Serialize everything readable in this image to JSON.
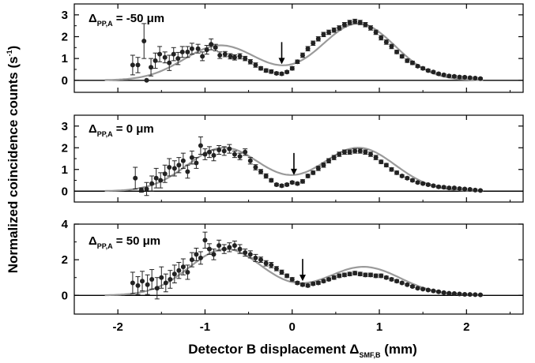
{
  "chart_data": {
    "type": "scatter",
    "xlabel": {
      "main": "Detector B displacement Δ",
      "sub": "SMF,B",
      "unit": " (mm)"
    },
    "ylabel": {
      "main": "Normalized coincidence counts (s",
      "sup": "-1",
      "end": ")"
    },
    "xlim": [
      -2.5,
      2.65
    ],
    "x_ticks": [
      "-2",
      "-1",
      "0",
      "1",
      "2"
    ],
    "panels": [
      {
        "label": {
          "delta": "Δ",
          "sub": "PP,A",
          "text": " = -50 μm"
        },
        "ylim": [
          -0.55,
          3.5
        ],
        "y_ticks": [
          "0",
          "1",
          "2",
          "3"
        ],
        "arrow_x": -0.12,
        "colors": {
          "points": "#222222",
          "fit": "#9a9a9a"
        },
        "points": [
          [
            -1.83,
            0.7,
            0.45
          ],
          [
            -1.77,
            0.7,
            0.35
          ],
          [
            -1.7,
            1.8,
            0.8
          ],
          [
            -1.67,
            0.0,
            0.0
          ],
          [
            -1.62,
            0.6,
            0.4
          ],
          [
            -1.57,
            0.9,
            0.35
          ],
          [
            -1.52,
            1.2,
            0.35
          ],
          [
            -1.46,
            1.05,
            0.25
          ],
          [
            -1.41,
            0.8,
            0.35
          ],
          [
            -1.36,
            1.2,
            0.3
          ],
          [
            -1.31,
            1.0,
            0.28
          ],
          [
            -1.26,
            1.3,
            0.25
          ],
          [
            -1.2,
            1.3,
            0.25
          ],
          [
            -1.15,
            1.45,
            0.25
          ],
          [
            -1.08,
            1.45,
            0.2
          ],
          [
            -1.03,
            1.1,
            0.2
          ],
          [
            -0.98,
            1.4,
            0.2
          ],
          [
            -0.93,
            1.65,
            0.25
          ],
          [
            -0.88,
            1.5,
            0.15
          ],
          [
            -0.83,
            1.15,
            0.15
          ],
          [
            -0.77,
            1.2,
            0.12
          ],
          [
            -0.71,
            1.1,
            0.12
          ],
          [
            -0.66,
            1.05,
            0.12
          ],
          [
            -0.6,
            1.1,
            0.12
          ],
          [
            -0.54,
            1.0,
            0.1
          ],
          [
            -0.48,
            0.85,
            0.1
          ],
          [
            -0.42,
            0.7,
            0.1
          ],
          [
            -0.36,
            0.55,
            0.08
          ],
          [
            -0.3,
            0.45,
            0.08
          ],
          [
            -0.24,
            0.4,
            0.08
          ],
          [
            -0.18,
            0.32,
            0.06
          ],
          [
            -0.12,
            0.3,
            0.06
          ],
          [
            -0.06,
            0.38,
            0.06
          ],
          [
            0.0,
            0.55,
            0.08
          ],
          [
            0.06,
            0.85,
            0.08
          ],
          [
            0.12,
            1.15,
            0.1
          ],
          [
            0.18,
            1.45,
            0.1
          ],
          [
            0.24,
            1.7,
            0.1
          ],
          [
            0.3,
            1.9,
            0.1
          ],
          [
            0.36,
            2.1,
            0.1
          ],
          [
            0.42,
            2.2,
            0.1
          ],
          [
            0.48,
            2.3,
            0.1
          ],
          [
            0.54,
            2.4,
            0.1
          ],
          [
            0.6,
            2.55,
            0.1
          ],
          [
            0.66,
            2.65,
            0.1
          ],
          [
            0.72,
            2.7,
            0.1
          ],
          [
            0.78,
            2.65,
            0.1
          ],
          [
            0.84,
            2.55,
            0.1
          ],
          [
            0.9,
            2.4,
            0.1
          ],
          [
            0.96,
            2.2,
            0.1
          ],
          [
            1.02,
            1.95,
            0.1
          ],
          [
            1.08,
            1.75,
            0.1
          ],
          [
            1.14,
            1.55,
            0.1
          ],
          [
            1.2,
            1.3,
            0.08
          ],
          [
            1.26,
            1.1,
            0.08
          ],
          [
            1.32,
            0.9,
            0.08
          ],
          [
            1.38,
            0.8,
            0.08
          ],
          [
            1.44,
            0.65,
            0.06
          ],
          [
            1.5,
            0.55,
            0.06
          ],
          [
            1.56,
            0.45,
            0.06
          ],
          [
            1.62,
            0.38,
            0.05
          ],
          [
            1.68,
            0.3,
            0.05
          ],
          [
            1.74,
            0.25,
            0.05
          ],
          [
            1.8,
            0.2,
            0.05
          ],
          [
            1.86,
            0.18,
            0.05
          ],
          [
            1.92,
            0.15,
            0.05
          ],
          [
            1.98,
            0.14,
            0.04
          ],
          [
            2.04,
            0.12,
            0.04
          ],
          [
            2.1,
            0.1,
            0.04
          ],
          [
            2.16,
            0.08,
            0.04
          ]
        ],
        "fit": {
          "left": {
            "center": -0.82,
            "amplitude": 1.6,
            "width": 0.42
          },
          "right": {
            "center": 0.76,
            "amplitude": 2.6,
            "width": 0.42
          }
        }
      },
      {
        "label": {
          "delta": "Δ",
          "sub": "PP,A",
          "text": " = 0 μm"
        },
        "ylim": [
          -0.5,
          3.5
        ],
        "y_ticks": [
          "0",
          "1",
          "2",
          "3"
        ],
        "arrow_x": 0.02,
        "colors": {
          "points": "#222222",
          "fit": "#9a9a9a"
        },
        "points": [
          [
            -1.8,
            0.6,
            0.5
          ],
          [
            -1.73,
            0.05,
            0.1
          ],
          [
            -1.67,
            0.1,
            0.3
          ],
          [
            -1.61,
            0.35,
            0.35
          ],
          [
            -1.56,
            0.6,
            0.45
          ],
          [
            -1.51,
            0.5,
            0.35
          ],
          [
            -1.46,
            0.8,
            0.4
          ],
          [
            -1.41,
            1.1,
            0.4
          ],
          [
            -1.35,
            1.05,
            0.35
          ],
          [
            -1.3,
            1.2,
            0.35
          ],
          [
            -1.25,
            1.4,
            0.35
          ],
          [
            -1.2,
            0.9,
            0.3
          ],
          [
            -1.15,
            1.55,
            0.3
          ],
          [
            -1.1,
            1.3,
            0.25
          ],
          [
            -1.05,
            2.1,
            0.4
          ],
          [
            -1.0,
            1.7,
            0.25
          ],
          [
            -0.95,
            1.8,
            0.25
          ],
          [
            -0.9,
            1.65,
            0.25
          ],
          [
            -0.84,
            1.9,
            0.2
          ],
          [
            -0.78,
            1.85,
            0.2
          ],
          [
            -0.72,
            1.95,
            0.2
          ],
          [
            -0.66,
            1.7,
            0.15
          ],
          [
            -0.6,
            1.6,
            0.15
          ],
          [
            -0.54,
            1.8,
            0.15
          ],
          [
            -0.48,
            1.4,
            0.15
          ],
          [
            -0.42,
            1.1,
            0.12
          ],
          [
            -0.36,
            0.9,
            0.1
          ],
          [
            -0.3,
            0.7,
            0.1
          ],
          [
            -0.24,
            0.5,
            0.08
          ],
          [
            -0.18,
            0.3,
            0.06
          ],
          [
            -0.12,
            0.25,
            0.06
          ],
          [
            -0.06,
            0.3,
            0.06
          ],
          [
            0.0,
            0.4,
            0.06
          ],
          [
            0.06,
            0.35,
            0.06
          ],
          [
            0.12,
            0.45,
            0.08
          ],
          [
            0.18,
            0.7,
            0.08
          ],
          [
            0.24,
            0.85,
            0.08
          ],
          [
            0.3,
            1.05,
            0.1
          ],
          [
            0.36,
            1.2,
            0.1
          ],
          [
            0.42,
            1.4,
            0.1
          ],
          [
            0.48,
            1.55,
            0.1
          ],
          [
            0.54,
            1.7,
            0.1
          ],
          [
            0.6,
            1.8,
            0.1
          ],
          [
            0.66,
            1.8,
            0.1
          ],
          [
            0.72,
            1.85,
            0.1
          ],
          [
            0.78,
            1.85,
            0.1
          ],
          [
            0.84,
            1.8,
            0.1
          ],
          [
            0.9,
            1.7,
            0.1
          ],
          [
            0.96,
            1.55,
            0.1
          ],
          [
            1.02,
            1.35,
            0.08
          ],
          [
            1.08,
            1.2,
            0.08
          ],
          [
            1.14,
            1.0,
            0.08
          ],
          [
            1.2,
            0.85,
            0.08
          ],
          [
            1.26,
            0.7,
            0.06
          ],
          [
            1.32,
            0.6,
            0.06
          ],
          [
            1.38,
            0.5,
            0.06
          ],
          [
            1.44,
            0.4,
            0.05
          ],
          [
            1.5,
            0.35,
            0.05
          ],
          [
            1.56,
            0.3,
            0.05
          ],
          [
            1.62,
            0.25,
            0.05
          ],
          [
            1.68,
            0.2,
            0.05
          ],
          [
            1.74,
            0.18,
            0.05
          ],
          [
            1.8,
            0.15,
            0.05
          ],
          [
            1.86,
            0.15,
            0.04
          ],
          [
            1.92,
            0.12,
            0.04
          ],
          [
            1.98,
            0.1,
            0.04
          ],
          [
            2.04,
            0.08,
            0.04
          ],
          [
            2.1,
            0.05,
            0.04
          ],
          [
            2.16,
            0.03,
            0.03
          ]
        ],
        "fit": {
          "left": {
            "center": -0.78,
            "amplitude": 2.0,
            "width": 0.42
          },
          "right": {
            "center": 0.76,
            "amplitude": 2.0,
            "width": 0.42
          }
        }
      },
      {
        "label": {
          "delta": "Δ",
          "sub": "PP,A",
          "text": " = 50 μm"
        },
        "ylim": [
          -1.05,
          4.0
        ],
        "y_ticks": [
          "0",
          "2",
          "4"
        ],
        "arrow_x": 0.12,
        "colors": {
          "points": "#222222",
          "fit": "#9a9a9a"
        },
        "points": [
          [
            -1.83,
            0.7,
            0.6
          ],
          [
            -1.77,
            0.55,
            0.5
          ],
          [
            -1.72,
            0.8,
            0.55
          ],
          [
            -1.66,
            0.6,
            0.55
          ],
          [
            -1.61,
            0.9,
            0.55
          ],
          [
            -1.55,
            0.4,
            0.6
          ],
          [
            -1.5,
            1.0,
            0.6
          ],
          [
            -1.45,
            0.7,
            0.5
          ],
          [
            -1.4,
            0.9,
            0.5
          ],
          [
            -1.35,
            1.2,
            0.5
          ],
          [
            -1.3,
            1.4,
            0.45
          ],
          [
            -1.25,
            1.6,
            0.45
          ],
          [
            -1.2,
            1.3,
            0.4
          ],
          [
            -1.15,
            2.0,
            0.4
          ],
          [
            -1.1,
            2.3,
            0.35
          ],
          [
            -1.05,
            2.1,
            0.35
          ],
          [
            -1.0,
            3.1,
            0.45
          ],
          [
            -0.95,
            2.6,
            0.3
          ],
          [
            -0.9,
            2.3,
            0.3
          ],
          [
            -0.84,
            2.8,
            0.3
          ],
          [
            -0.78,
            2.6,
            0.25
          ],
          [
            -0.72,
            2.7,
            0.25
          ],
          [
            -0.66,
            2.8,
            0.25
          ],
          [
            -0.6,
            2.6,
            0.25
          ],
          [
            -0.54,
            2.4,
            0.2
          ],
          [
            -0.48,
            2.3,
            0.2
          ],
          [
            -0.42,
            2.1,
            0.2
          ],
          [
            -0.36,
            2.0,
            0.15
          ],
          [
            -0.3,
            1.8,
            0.15
          ],
          [
            -0.24,
            1.7,
            0.15
          ],
          [
            -0.18,
            1.5,
            0.12
          ],
          [
            -0.12,
            1.3,
            0.12
          ],
          [
            -0.06,
            1.1,
            0.1
          ],
          [
            0.0,
            0.9,
            0.1
          ],
          [
            0.06,
            0.7,
            0.08
          ],
          [
            0.12,
            0.6,
            0.08
          ],
          [
            0.18,
            0.55,
            0.08
          ],
          [
            0.24,
            0.65,
            0.08
          ],
          [
            0.3,
            0.7,
            0.08
          ],
          [
            0.36,
            0.8,
            0.08
          ],
          [
            0.42,
            0.9,
            0.08
          ],
          [
            0.48,
            1.0,
            0.1
          ],
          [
            0.54,
            1.1,
            0.1
          ],
          [
            0.6,
            1.15,
            0.1
          ],
          [
            0.66,
            1.2,
            0.1
          ],
          [
            0.72,
            1.25,
            0.1
          ],
          [
            0.78,
            1.2,
            0.1
          ],
          [
            0.84,
            1.15,
            0.1
          ],
          [
            0.9,
            1.15,
            0.1
          ],
          [
            0.96,
            1.1,
            0.1
          ],
          [
            1.02,
            1.1,
            0.1
          ],
          [
            1.08,
            1.0,
            0.08
          ],
          [
            1.14,
            0.9,
            0.08
          ],
          [
            1.2,
            0.8,
            0.08
          ],
          [
            1.26,
            0.7,
            0.06
          ],
          [
            1.32,
            0.6,
            0.06
          ],
          [
            1.38,
            0.5,
            0.06
          ],
          [
            1.44,
            0.4,
            0.05
          ],
          [
            1.5,
            0.35,
            0.05
          ],
          [
            1.56,
            0.3,
            0.05
          ],
          [
            1.62,
            0.25,
            0.05
          ],
          [
            1.68,
            0.2,
            0.05
          ],
          [
            1.74,
            0.15,
            0.05
          ],
          [
            1.8,
            0.12,
            0.04
          ],
          [
            1.86,
            0.1,
            0.04
          ],
          [
            1.92,
            0.08,
            0.04
          ],
          [
            1.98,
            0.06,
            0.04
          ],
          [
            2.04,
            0.05,
            0.04
          ],
          [
            2.1,
            0.04,
            0.04
          ],
          [
            2.16,
            0.03,
            0.03
          ]
        ],
        "fit": {
          "left": {
            "center": -0.76,
            "amplitude": 2.6,
            "width": 0.42
          },
          "right": {
            "center": 0.82,
            "amplitude": 1.6,
            "width": 0.42
          }
        }
      }
    ]
  }
}
